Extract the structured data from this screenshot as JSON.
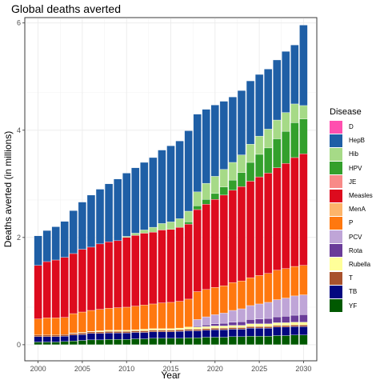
{
  "chart_data": {
    "type": "bar",
    "stacked": true,
    "title": "Global deaths averted",
    "xlabel": "Year",
    "ylabel": "Deaths averted (in millions)",
    "xlim": [
      1998.5,
      2031.5
    ],
    "ylim": [
      -0.3,
      6.1
    ],
    "x_ticks": [
      2000,
      2005,
      2010,
      2015,
      2020,
      2025,
      2030
    ],
    "y_ticks": [
      0,
      2,
      4,
      6
    ],
    "legend_title": "Disease",
    "legend_position": "right",
    "grid": true,
    "categories": [
      2000,
      2001,
      2002,
      2003,
      2004,
      2005,
      2006,
      2007,
      2008,
      2009,
      2010,
      2011,
      2012,
      2013,
      2014,
      2015,
      2016,
      2017,
      2018,
      2019,
      2020,
      2021,
      2022,
      2023,
      2024,
      2025,
      2026,
      2027,
      2028,
      2029,
      2030
    ],
    "series": [
      {
        "name": "D",
        "color": "#FF4FAF",
        "values": [
          0,
          0,
          0,
          0,
          0,
          0,
          0,
          0,
          0,
          0,
          0,
          0,
          0,
          0,
          0,
          0,
          0,
          0,
          0,
          0,
          0,
          0,
          0,
          0,
          0,
          0,
          0,
          0,
          0,
          0,
          0
        ]
      },
      {
        "name": "HepB",
        "color": "#1F5FA6",
        "values": [
          0.55,
          0.58,
          0.62,
          0.67,
          0.8,
          0.88,
          0.97,
          1.02,
          1.08,
          1.15,
          1.18,
          1.22,
          1.26,
          1.3,
          1.37,
          1.42,
          1.45,
          1.5,
          1.45,
          1.38,
          1.33,
          1.27,
          1.22,
          1.2,
          1.18,
          1.15,
          1.12,
          1.12,
          1.14,
          1.1,
          1.5
        ]
      },
      {
        "name": "Hib",
        "color": "#A6DA87",
        "values": [
          0,
          0,
          0,
          0,
          0,
          0,
          0,
          0,
          0,
          0,
          0.02,
          0.04,
          0.06,
          0.09,
          0.12,
          0.14,
          0.16,
          0.2,
          0.26,
          0.3,
          0.32,
          0.33,
          0.33,
          0.33,
          0.34,
          0.34,
          0.35,
          0.35,
          0.35,
          0.35,
          0.25
        ]
      },
      {
        "name": "HPV",
        "color": "#33A02C",
        "values": [
          0,
          0,
          0,
          0,
          0,
          0,
          0,
          0,
          0,
          0,
          0,
          0,
          0,
          0,
          0,
          0,
          0,
          0.04,
          0.07,
          0.09,
          0.11,
          0.15,
          0.19,
          0.26,
          0.35,
          0.42,
          0.47,
          0.54,
          0.6,
          0.65,
          0.65
        ]
      },
      {
        "name": "JE",
        "color": "#F88A88",
        "values": [
          0,
          0,
          0,
          0,
          0,
          0,
          0,
          0,
          0,
          0,
          0,
          0,
          0,
          0,
          0,
          0,
          0,
          0,
          0,
          0,
          0,
          0,
          0,
          0,
          0,
          0,
          0,
          0,
          0,
          0,
          0
        ]
      },
      {
        "name": "Measles",
        "color": "#DD0B1E",
        "values": [
          1.0,
          1.05,
          1.08,
          1.12,
          1.12,
          1.17,
          1.18,
          1.22,
          1.24,
          1.25,
          1.3,
          1.32,
          1.34,
          1.34,
          1.36,
          1.36,
          1.38,
          1.4,
          1.53,
          1.59,
          1.64,
          1.69,
          1.72,
          1.76,
          1.8,
          1.84,
          1.87,
          1.91,
          1.96,
          2.03,
          2.08
        ]
      },
      {
        "name": "MenA",
        "color": "#FDB46A",
        "values": [
          0,
          0,
          0,
          0,
          0,
          0,
          0,
          0,
          0,
          0,
          0,
          0,
          0,
          0,
          0,
          0,
          0,
          0,
          0,
          0,
          0,
          0,
          0,
          0,
          0,
          0,
          0,
          0,
          0,
          0,
          0
        ]
      },
      {
        "name": "P",
        "color": "#FF780F",
        "values": [
          0.3,
          0.32,
          0.32,
          0.32,
          0.36,
          0.38,
          0.39,
          0.4,
          0.41,
          0.42,
          0.43,
          0.44,
          0.45,
          0.46,
          0.48,
          0.49,
          0.5,
          0.52,
          0.52,
          0.51,
          0.51,
          0.51,
          0.52,
          0.52,
          0.52,
          0.53,
          0.54,
          0.55,
          0.55,
          0.55,
          0.55
        ]
      },
      {
        "name": "PCV",
        "color": "#BFA5D7",
        "values": [
          0,
          0,
          0,
          0,
          0,
          0,
          0,
          0,
          0,
          0,
          0,
          0,
          0,
          0,
          0,
          0,
          0,
          0,
          0.12,
          0.15,
          0.17,
          0.19,
          0.22,
          0.24,
          0.26,
          0.28,
          0.3,
          0.32,
          0.34,
          0.36,
          0.37
        ]
      },
      {
        "name": "Rota",
        "color": "#6A3C99",
        "values": [
          0,
          0,
          0,
          0,
          0,
          0,
          0,
          0,
          0,
          0,
          0,
          0,
          0,
          0,
          0,
          0,
          0,
          0,
          0.02,
          0.03,
          0.04,
          0.05,
          0.06,
          0.07,
          0.08,
          0.09,
          0.1,
          0.11,
          0.12,
          0.13,
          0.14
        ]
      },
      {
        "name": "Rubella",
        "color": "#FFFF99",
        "values": [
          0,
          0,
          0,
          0,
          0.01,
          0.01,
          0.01,
          0.02,
          0.02,
          0.02,
          0.02,
          0.02,
          0.03,
          0.03,
          0.03,
          0.03,
          0.03,
          0.04,
          0.04,
          0.04,
          0.04,
          0.04,
          0.04,
          0.04,
          0.05,
          0.05,
          0.05,
          0.05,
          0.05,
          0.05,
          0.05
        ]
      },
      {
        "name": "T",
        "color": "#A8522D",
        "values": [
          0.03,
          0.03,
          0.03,
          0.03,
          0.03,
          0.03,
          0.03,
          0.03,
          0.03,
          0.03,
          0.03,
          0.03,
          0.03,
          0.03,
          0.03,
          0.03,
          0.03,
          0.03,
          0.03,
          0.03,
          0.03,
          0.03,
          0.03,
          0.03,
          0.03,
          0.03,
          0.03,
          0.03,
          0.03,
          0.03,
          0.03
        ]
      },
      {
        "name": "TB",
        "color": "#030780",
        "values": [
          0.1,
          0.1,
          0.1,
          0.1,
          0.11,
          0.11,
          0.12,
          0.12,
          0.12,
          0.12,
          0.12,
          0.12,
          0.12,
          0.12,
          0.12,
          0.12,
          0.13,
          0.13,
          0.13,
          0.13,
          0.14,
          0.14,
          0.14,
          0.14,
          0.15,
          0.15,
          0.15,
          0.16,
          0.16,
          0.16,
          0.16
        ]
      },
      {
        "name": "YF",
        "color": "#005900",
        "values": [
          0.05,
          0.05,
          0.05,
          0.06,
          0.07,
          0.08,
          0.09,
          0.09,
          0.1,
          0.1,
          0.1,
          0.11,
          0.11,
          0.12,
          0.12,
          0.12,
          0.12,
          0.13,
          0.13,
          0.14,
          0.14,
          0.14,
          0.15,
          0.15,
          0.16,
          0.16,
          0.16,
          0.17,
          0.17,
          0.18,
          0.18
        ]
      }
    ]
  }
}
